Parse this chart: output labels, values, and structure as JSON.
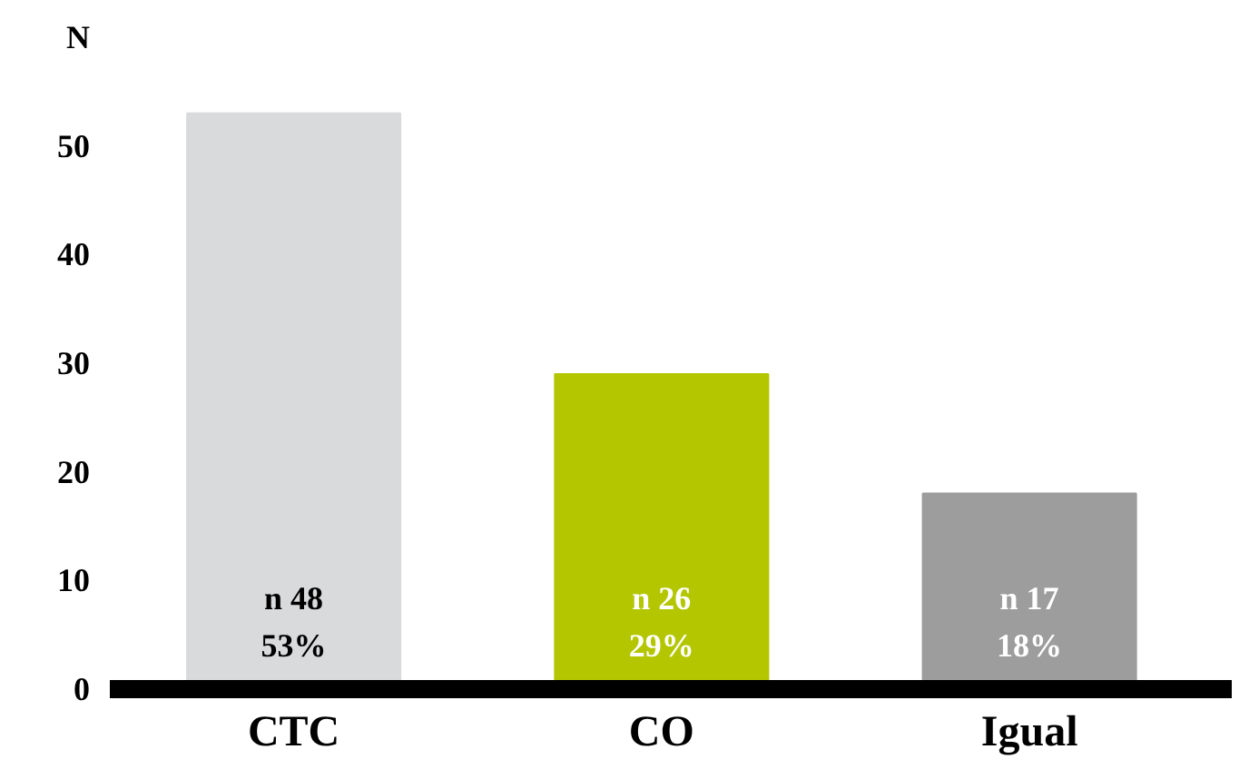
{
  "chart_data": {
    "type": "bar",
    "categories": [
      "CTC",
      "CO",
      "Igual"
    ],
    "values": [
      53,
      29,
      18
    ],
    "colors": [
      "#d9dadc",
      "#b3c600",
      "#9d9d9d"
    ],
    "value_labels": [
      "n 48\n53%",
      "n 26\n29%",
      "n 17\n18%"
    ],
    "ylim": [
      0,
      60
    ],
    "yticks": [
      0,
      10,
      20,
      30,
      40,
      50,
      {
        "value": 60,
        "label": "N"
      }
    ],
    "grid": false
  }
}
